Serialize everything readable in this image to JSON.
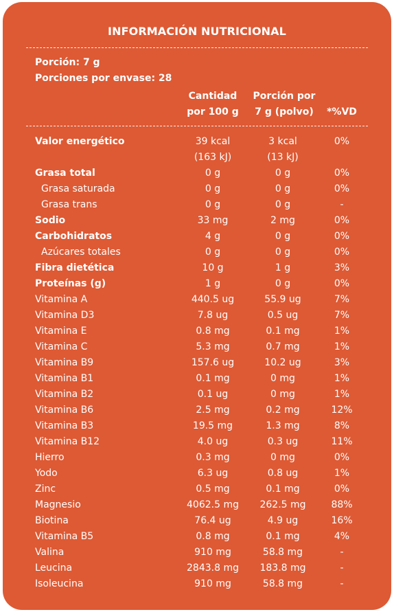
{
  "title": "INFORMACIÓN NUTRICIONAL",
  "serving_size": "Porción: 7 g",
  "servings_per_container": "Porciones por envase: 28",
  "columns": {
    "per100_line1": "Cantidad",
    "per100_line2": "por 100 g",
    "perServing_line1": "Porción por",
    "perServing_line2": "7 g (polvo)",
    "dv": "*%VD"
  },
  "rows": [
    {
      "name": "Valor energético",
      "bold": true,
      "sub": false,
      "per100": "39 kcal",
      "per100_2": "(163 kJ)",
      "perServing": "3 kcal",
      "perServing_2": "(13 kJ)",
      "dv": "0%"
    },
    {
      "name": "Grasa total",
      "bold": true,
      "sub": false,
      "per100": "0 g",
      "perServing": "0 g",
      "dv": "0%"
    },
    {
      "name": "Grasa saturada",
      "bold": false,
      "sub": true,
      "per100": "0 g",
      "perServing": "0 g",
      "dv": "0%"
    },
    {
      "name": "Grasa trans",
      "bold": false,
      "sub": true,
      "per100": "0 g",
      "perServing": "0 g",
      "dv": "-"
    },
    {
      "name": "Sodio",
      "bold": true,
      "sub": false,
      "per100": "33 mg",
      "perServing": "2 mg",
      "dv": "0%"
    },
    {
      "name": "Carbohidratos",
      "bold": true,
      "sub": false,
      "per100": "4 g",
      "perServing": "0 g",
      "dv": "0%"
    },
    {
      "name": "Azúcares totales",
      "bold": false,
      "sub": true,
      "per100": "0 g",
      "perServing": "0 g",
      "dv": "0%"
    },
    {
      "name": "Fibra dietética",
      "bold": true,
      "sub": false,
      "per100": "10 g",
      "perServing": "1 g",
      "dv": "3%"
    },
    {
      "name": "Proteínas (g)",
      "bold": true,
      "sub": false,
      "per100": "1 g",
      "perServing": "0 g",
      "dv": "0%"
    },
    {
      "name": "Vitamina A",
      "bold": false,
      "sub": false,
      "per100": "440.5 ug",
      "perServing": "55.9 ug",
      "dv": "7%"
    },
    {
      "name": "Vitamina D3",
      "bold": false,
      "sub": false,
      "per100": "7.8 ug",
      "perServing": "0.5 ug",
      "dv": "7%"
    },
    {
      "name": "Vitamina E",
      "bold": false,
      "sub": false,
      "per100": "0.8 mg",
      "perServing": "0.1 mg",
      "dv": "1%"
    },
    {
      "name": "Vitamina C",
      "bold": false,
      "sub": false,
      "per100": "5.3 mg",
      "perServing": "0.7 mg",
      "dv": "1%"
    },
    {
      "name": "Vitamina B9",
      "bold": false,
      "sub": false,
      "per100": "157.6 ug",
      "perServing": "10.2 ug",
      "dv": "3%"
    },
    {
      "name": "Vitamina B1",
      "bold": false,
      "sub": false,
      "per100": "0.1 mg",
      "perServing": "0 mg",
      "dv": "1%"
    },
    {
      "name": "Vitamina B2",
      "bold": false,
      "sub": false,
      "per100": "0.1 ug",
      "perServing": "0 mg",
      "dv": "1%"
    },
    {
      "name": "Vitamina B6",
      "bold": false,
      "sub": false,
      "per100": "2.5 mg",
      "perServing": "0.2 mg",
      "dv": "12%"
    },
    {
      "name": "Vitamina B3",
      "bold": false,
      "sub": false,
      "per100": "19.5 mg",
      "perServing": "1.3 mg",
      "dv": "8%"
    },
    {
      "name": "Vitamina B12",
      "bold": false,
      "sub": false,
      "per100": "4.0 ug",
      "perServing": "0.3 ug",
      "dv": "11%"
    },
    {
      "name": "Hierro",
      "bold": false,
      "sub": false,
      "per100": "0.3 mg",
      "perServing": "0 mg",
      "dv": "0%"
    },
    {
      "name": "Yodo",
      "bold": false,
      "sub": false,
      "per100": "6.3 ug",
      "perServing": "0.8 ug",
      "dv": "1%"
    },
    {
      "name": "Zinc",
      "bold": false,
      "sub": false,
      "per100": "0.5 mg",
      "perServing": "0.1 mg",
      "dv": "0%"
    },
    {
      "name": "Magnesio",
      "bold": false,
      "sub": false,
      "per100": "4062.5 mg",
      "perServing": "262.5 mg",
      "dv": "88%"
    },
    {
      "name": "Biotina",
      "bold": false,
      "sub": false,
      "per100": "76.4 ug",
      "perServing": "4.9 ug",
      "dv": "16%"
    },
    {
      "name": "Vitamina B5",
      "bold": false,
      "sub": false,
      "per100": "0.8 mg",
      "perServing": "0.1 mg",
      "dv": "4%"
    },
    {
      "name": "Valina",
      "bold": false,
      "sub": false,
      "per100": "910 mg",
      "perServing": "58.8 mg",
      "dv": "-"
    },
    {
      "name": "Leucina",
      "bold": false,
      "sub": false,
      "per100": "2843.8 mg",
      "perServing": "183.8 mg",
      "dv": "-"
    },
    {
      "name": "Isoleucina",
      "bold": false,
      "sub": false,
      "per100": "910 mg",
      "perServing": "58.8 mg",
      "dv": "-"
    }
  ]
}
